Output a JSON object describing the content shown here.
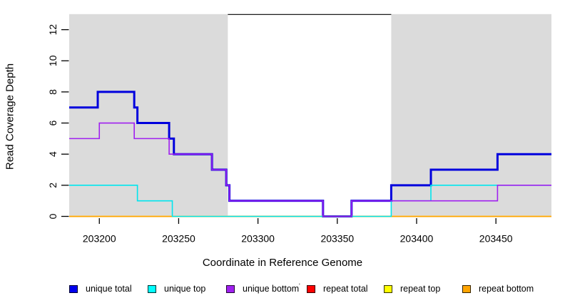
{
  "figure": {
    "xlabel": "Coordinate in Reference Genome",
    "ylabel": "Read Coverage Depth"
  },
  "chart_data": {
    "type": "line",
    "subtype": "step-after",
    "title": "",
    "xlabel": "Coordinate in Reference Genome",
    "ylabel": "Read Coverage Depth",
    "xlim": [
      203181,
      203485
    ],
    "ylim": [
      0,
      13
    ],
    "x_ticks": [
      203200,
      203250,
      203300,
      203350,
      203400,
      203450
    ],
    "y_ticks": [
      0,
      2,
      4,
      6,
      8,
      10,
      12
    ],
    "grid": false,
    "legend_position": "bottom",
    "band_color": "#DBDBDB",
    "shaded_regions": [
      {
        "x0": 203181,
        "x1": 203281
      },
      {
        "x0": 203384,
        "x1": 203485
      }
    ],
    "box_top_visible_range": [
      203281,
      203384
    ],
    "draw_order": [
      "unique total",
      "repeat total",
      "repeat top",
      "repeat bottom",
      "unique top",
      "unique bottom"
    ],
    "series": [
      {
        "name": "unique total",
        "color": "#0000DD",
        "line_width": 3,
        "points": [
          [
            203181,
            7
          ],
          [
            203199,
            8
          ],
          [
            203222,
            7
          ],
          [
            203224,
            6
          ],
          [
            203244,
            5
          ],
          [
            203247,
            4
          ],
          [
            203271,
            3
          ],
          [
            203280,
            2
          ],
          [
            203282,
            1
          ],
          [
            203341,
            0
          ],
          [
            203359,
            1
          ],
          [
            203384,
            2
          ],
          [
            203409,
            3
          ],
          [
            203451,
            4
          ],
          [
            203485,
            4
          ]
        ]
      },
      {
        "name": "unique top",
        "color": "#00E5EE",
        "line_width": 1.6,
        "points": [
          [
            203181,
            2
          ],
          [
            203224,
            1
          ],
          [
            203246,
            0
          ],
          [
            203384,
            1
          ],
          [
            203409,
            2
          ],
          [
            203485,
            2
          ]
        ]
      },
      {
        "name": "unique bottom",
        "color": "#A020F0",
        "line_width": 1.6,
        "points": [
          [
            203181,
            5
          ],
          [
            203200,
            6
          ],
          [
            203222,
            5
          ],
          [
            203244,
            4
          ],
          [
            203271,
            3
          ],
          [
            203280,
            2
          ],
          [
            203282,
            1
          ],
          [
            203341,
            0
          ],
          [
            203359,
            1
          ],
          [
            203451,
            2
          ],
          [
            203485,
            2
          ]
        ]
      },
      {
        "name": "repeat total",
        "color": "#DD0000",
        "line_width": 1.6,
        "points": [
          [
            203181,
            0
          ],
          [
            203485,
            0
          ]
        ]
      },
      {
        "name": "repeat top",
        "color": "#EEEE00",
        "line_width": 1.6,
        "points": [
          [
            203181,
            0
          ],
          [
            203485,
            0
          ]
        ]
      },
      {
        "name": "repeat bottom",
        "color": "#FFA500",
        "line_width": 1.6,
        "points": [
          [
            203181,
            0
          ],
          [
            203485,
            0
          ]
        ]
      }
    ]
  },
  "legend": {
    "items": [
      {
        "label": "unique total",
        "fill": "#0000EE"
      },
      {
        "label": "unique top",
        "fill": "#00FFFF"
      },
      {
        "label": "unique bottom",
        "fill": "#A020F0"
      },
      {
        "label": "repeat total",
        "fill": "#FF0000"
      },
      {
        "label": "repeat top",
        "fill": "#FFFF00"
      },
      {
        "label": "repeat bottom",
        "fill": "#FFA500"
      }
    ],
    "stray_mark": "'"
  }
}
